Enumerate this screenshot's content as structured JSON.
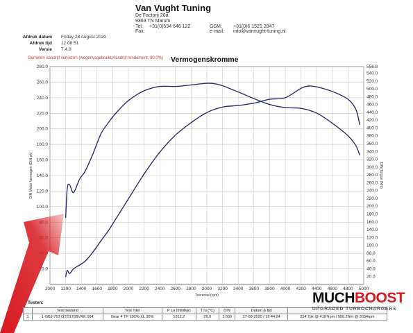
{
  "header": {
    "company": "Van Vught Tuning",
    "address_lines": [
      "De Factorij 20a",
      "9363 TN Marum"
    ],
    "contact_left": [
      {
        "label": "Tel:",
        "value": "+31(0)594 646 122"
      },
      {
        "label": "Fax:",
        "value": ""
      }
    ],
    "contact_right": [
      {
        "label": "GSM:",
        "value": "+31(0)6 1521 2847"
      },
      {
        "label": "e-mail:",
        "value": "info@vanvught-tuning.nl"
      }
    ]
  },
  "print_meta": [
    {
      "label": "Afdruk datum",
      "value": "Friday 28 August 2020"
    },
    {
      "label": "Afdruk tijd",
      "value": "12:08:51"
    },
    {
      "label": "Versie",
      "value": "7.4.0"
    }
  ],
  "note": "Gemeten aandrijf verliezen (wegenvsgebruikt/Aandrijf rendement, 90.0%)",
  "colors": {
    "curve": "#2b2f6b",
    "grid": "#c8c8c8",
    "arrow": "#d71920",
    "note": "#c0392b"
  },
  "chart_data": {
    "type": "line",
    "title": "Vermogenskromme",
    "xlabel": "Toerental (rpm)",
    "ylabel_left": "DIN Motor Vermogen (DIN pk)",
    "ylabel_right": "DIN Torque (Nm)",
    "xlim": [
      1000,
      5000
    ],
    "ylim_left": [
      0,
      280
    ],
    "ylim_right": [
      0,
      556.8
    ],
    "x_ticks": [
      1000,
      1200,
      1400,
      1600,
      1800,
      2000,
      2200,
      2400,
      2600,
      2800,
      3000,
      3200,
      3400,
      3600,
      3800,
      4000,
      4200,
      4400,
      4600,
      4800,
      5000
    ],
    "y_ticks_left": [
      20,
      40,
      60,
      80,
      100,
      120,
      140,
      160,
      180,
      200,
      220,
      240,
      260,
      280
    ],
    "y_ticks_right": [
      20,
      40,
      60,
      80,
      100,
      120,
      140,
      160,
      180,
      200,
      220,
      240,
      260,
      280,
      300,
      320,
      340,
      360,
      380,
      400,
      420,
      440,
      460,
      480,
      500,
      520,
      540,
      556.8
    ],
    "series": [
      {
        "axis": "right",
        "x": [
          1200,
          1220,
          1250,
          1300,
          1380,
          1450,
          1550,
          1650,
          1750,
          1850,
          2000,
          2200,
          2400,
          2600,
          2800,
          3000,
          3100,
          3200,
          3300,
          3400,
          3600,
          3800,
          4000,
          4200,
          4400,
          4600,
          4800,
          4900,
          4950
        ],
        "y": [
          170,
          245,
          255,
          235,
          270,
          290,
          335,
          385,
          415,
          440,
          470,
          495,
          506,
          506,
          510,
          514,
          513,
          508,
          500,
          492,
          475,
          460,
          452,
          450,
          438,
          412,
          380,
          355,
          330
        ]
      },
      {
        "axis": "left",
        "x": [
          1200,
          1220,
          1250,
          1300,
          1380,
          1450,
          1550,
          1650,
          1750,
          1850,
          2000,
          2200,
          2400,
          2600,
          2800,
          3000,
          3200,
          3400,
          3600,
          3800,
          4000,
          4200,
          4300,
          4400,
          4600,
          4800,
          4900,
          4950
        ],
        "y": [
          10,
          18,
          14,
          20,
          25,
          30,
          42,
          56,
          70,
          86,
          110,
          142,
          170,
          192,
          208,
          221,
          228,
          230,
          233,
          238,
          240,
          252,
          255,
          254,
          248,
          238,
          225,
          205
        ]
      }
    ]
  },
  "test_table": {
    "section_label": "Testen:",
    "headers": [
      "",
      "Test bestand",
      "Test Titel",
      "P Lu (millibar)",
      "T lu (°C)",
      "DIN",
      "Datum & tijd",
      ""
    ],
    "rows": [
      [
        "1",
        "1-GBJ-753 GTD170BVRK.004",
        "Gear 4 TP 100%-XL 30%",
        "1012.2",
        "29.0",
        "1.000",
        "27-08-2020 / 16:44:24",
        "254.7pk @ 4197rpm / 506.2Nm @ 3034rpm"
      ]
    ]
  },
  "logo": {
    "main_a": "MUCH",
    "main_b": "BOOST",
    "tagline": "UPGRADED TURBOCHARGERS"
  }
}
